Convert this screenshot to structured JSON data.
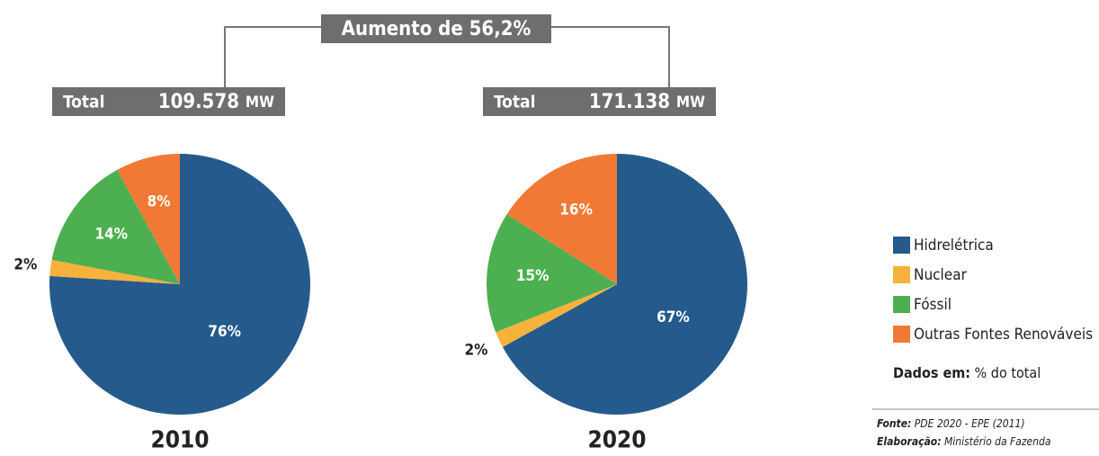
{
  "header": {
    "increase": "Aumento de 56,2%"
  },
  "chart_data": [
    {
      "type": "pie",
      "title": "2010",
      "total_label": "Total",
      "total": "109.578",
      "unit": "MW",
      "categories": [
        "Hidrelétrica",
        "Nuclear",
        "Fóssil",
        "Outras Fontes Renováveis"
      ],
      "values": [
        76,
        2,
        14,
        8
      ],
      "value_labels": [
        "76%",
        "2%",
        "14%",
        "8%"
      ],
      "colors": [
        "#245b8c",
        "#f7b23b",
        "#4cb050",
        "#f07a35"
      ]
    },
    {
      "type": "pie",
      "title": "2020",
      "total_label": "Total",
      "total": "171.138",
      "unit": "MW",
      "categories": [
        "Hidrelétrica",
        "Nuclear",
        "Fóssil",
        "Outras Fontes Renováveis"
      ],
      "values": [
        67,
        2,
        15,
        16
      ],
      "value_labels": [
        "67%",
        "2%",
        "15%",
        "16%"
      ],
      "colors": [
        "#245b8c",
        "#f7b23b",
        "#4cb050",
        "#f07a35"
      ]
    }
  ],
  "notes": {
    "data_label": "Dados em:",
    "data_unit": "% do total",
    "source_label": "Fonte:",
    "source": "PDE 2020 - EPE (2011)",
    "made_label": "Elaboração:",
    "made": "Ministério da Fazenda"
  }
}
